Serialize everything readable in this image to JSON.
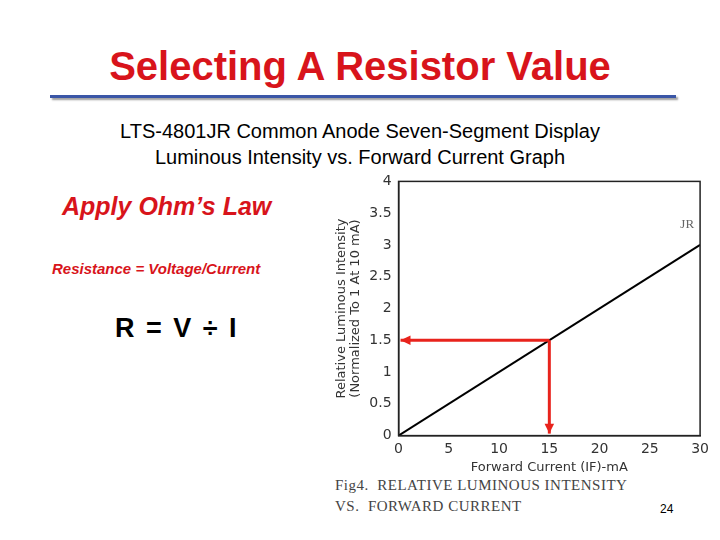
{
  "slide": {
    "title": "Selecting A Resistor Value",
    "subtitle": [
      "LTS-4801JR Common Anode Seven-Segment Display",
      "Luminous Intensity vs. Forward Current Graph"
    ],
    "left_text": [
      "Apply Ohm’s Law",
      "Resistance = Voltage/Current",
      "R = V ÷ I"
    ],
    "page_number": "24"
  },
  "chart_data": {
    "type": "line",
    "xlabel": "Forward Current (IF)-mA",
    "ylabel": [
      "Relative Luminous Intensity",
      "(Normalized To 1 At 10 mA)"
    ],
    "caption": [
      "Fig4.  RELATIVE LUMINOUS INTENSITY",
      "VS.  FORWARD CURRENT"
    ],
    "x": [
      0,
      30
    ],
    "series": [
      {
        "name": "JR",
        "color": "#000000",
        "values": [
          0,
          3
        ]
      }
    ],
    "xlim": [
      0,
      30
    ],
    "xticks": [
      0,
      5,
      10,
      15,
      20,
      25,
      30
    ],
    "ylim": [
      0,
      4
    ],
    "yticks": [
      0,
      0.5,
      1,
      1.5,
      2,
      2.5,
      3,
      3.5,
      4
    ],
    "grid": false,
    "highlight": {
      "x": 15,
      "y": 1.5,
      "color": "#e8231c"
    }
  }
}
